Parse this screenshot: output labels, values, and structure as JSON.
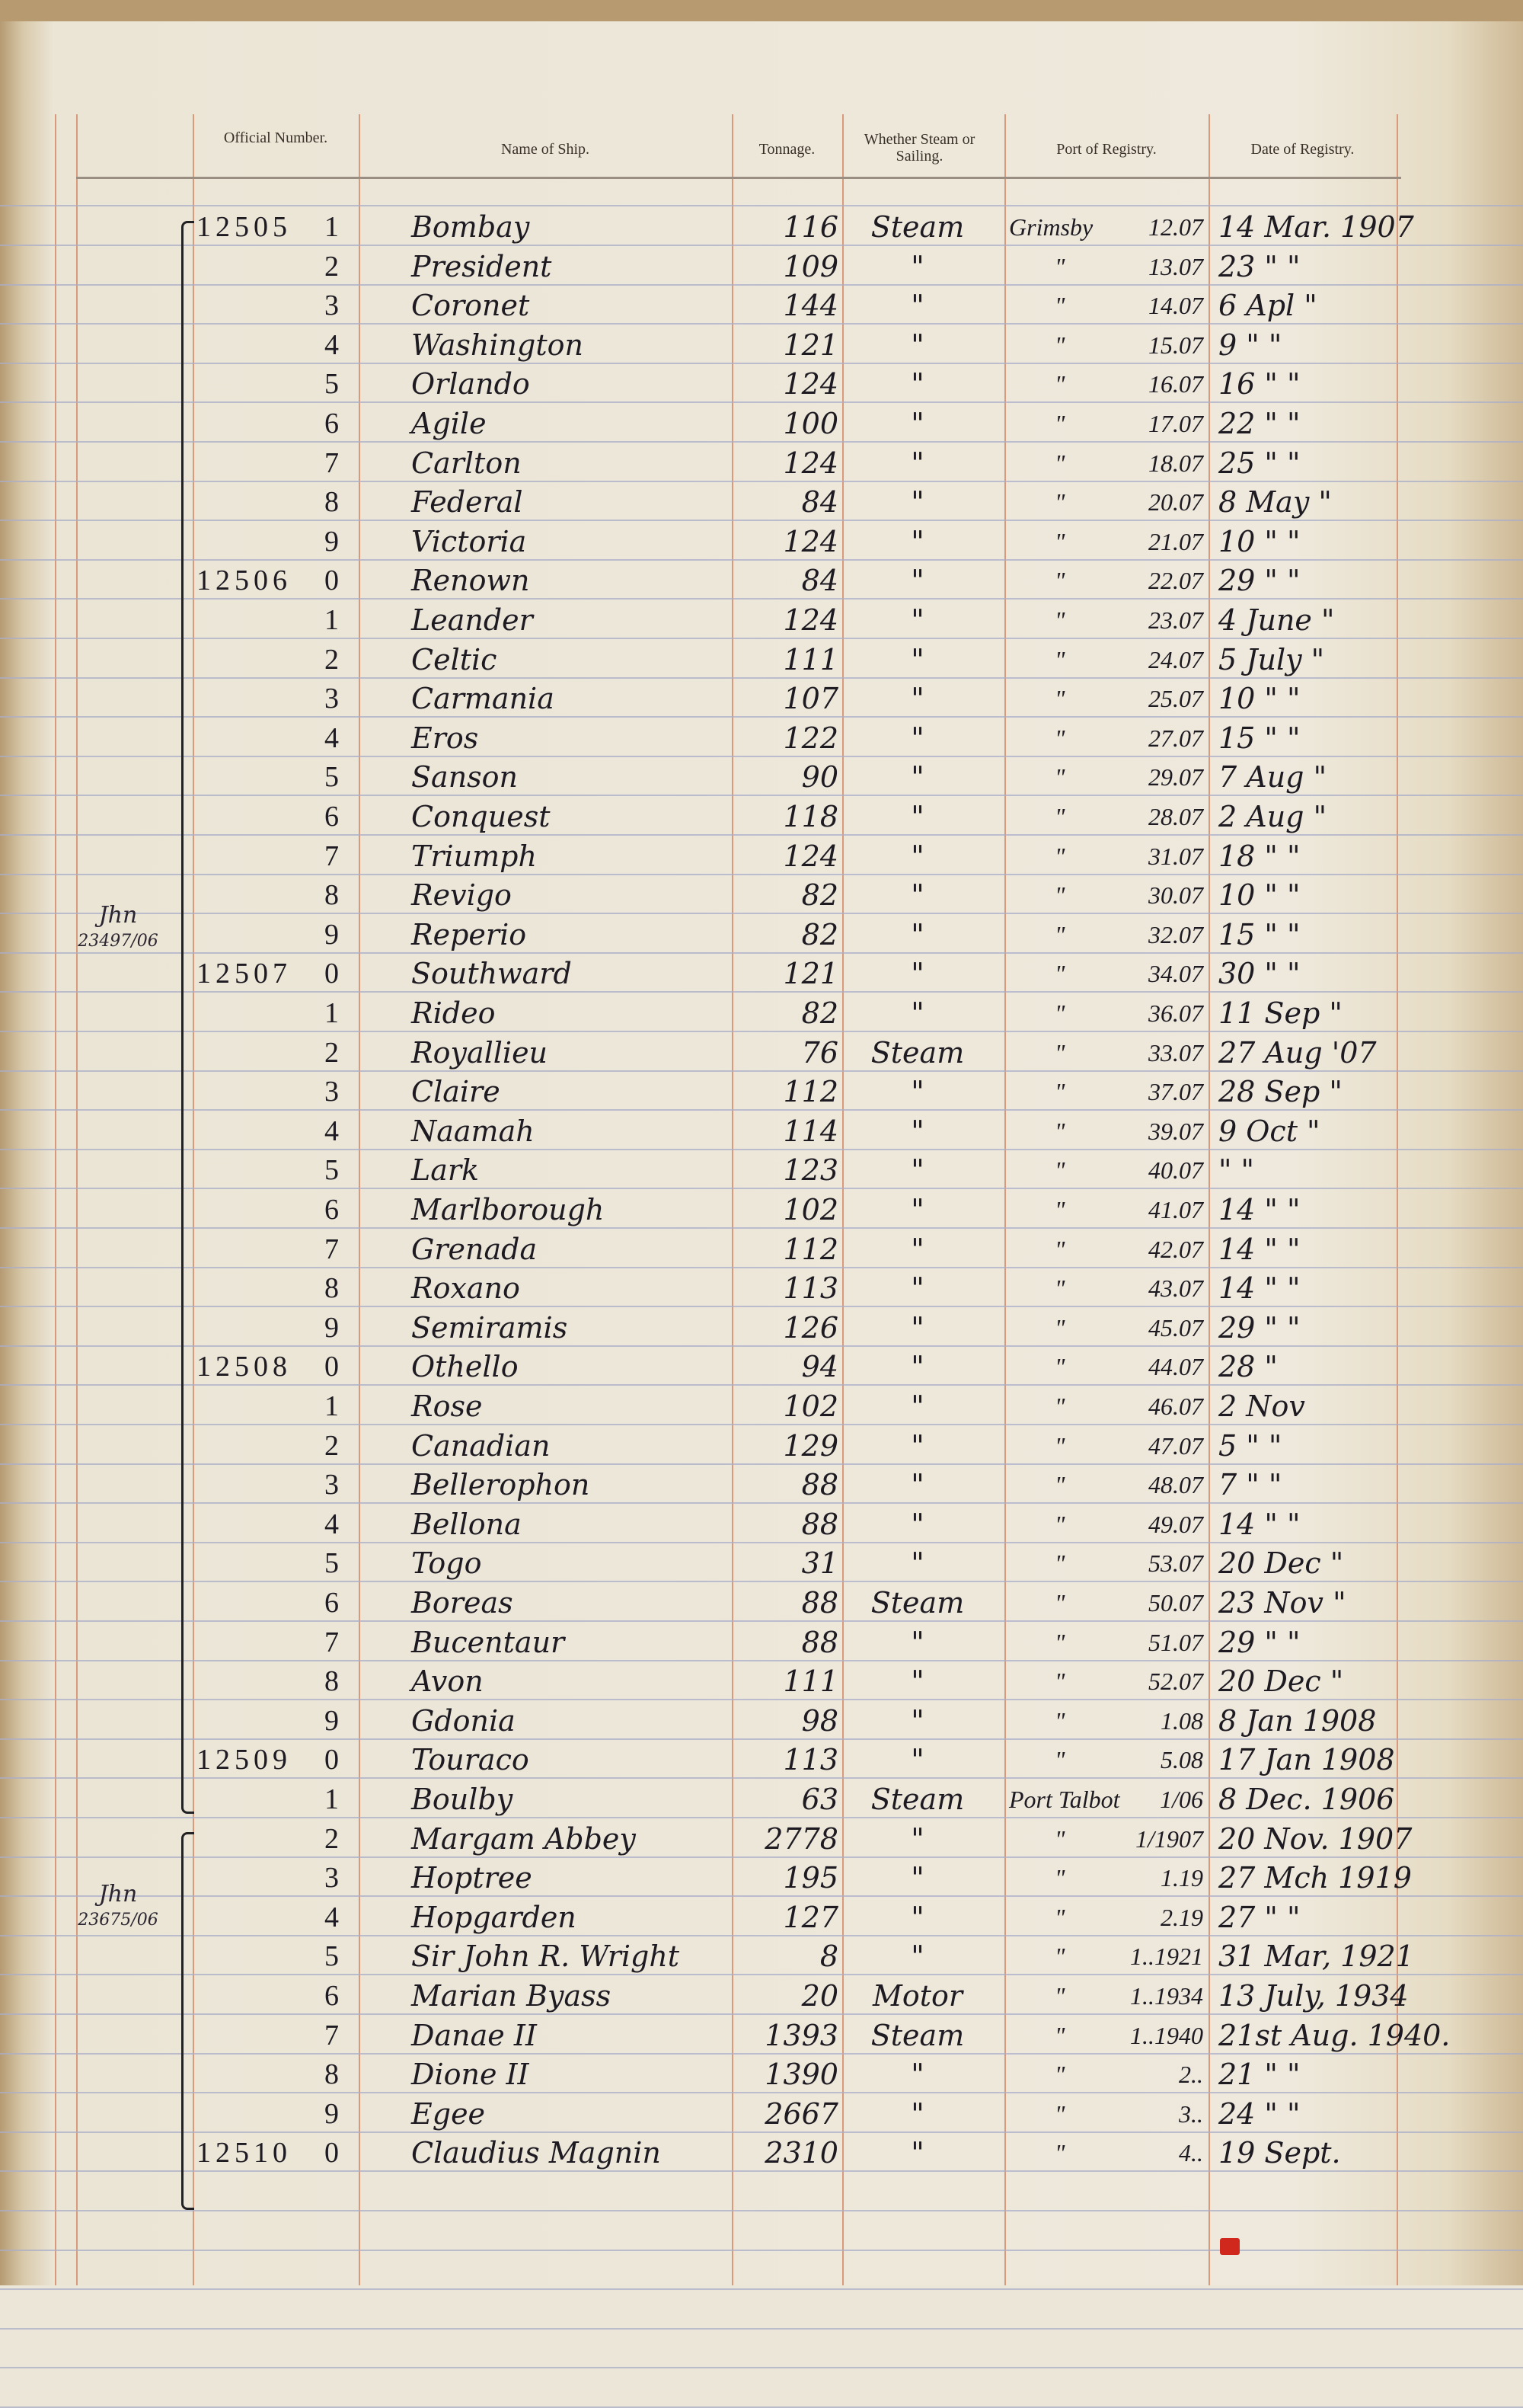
{
  "header": {
    "official_number": "Official Number.",
    "name": "Name of Ship.",
    "tonnage": "Tonnage.",
    "steam": "Whether Steam or Sailing.",
    "port": "Port of Registry.",
    "date": "Date of Registry."
  },
  "margin_notes": [
    {
      "label": "Jhn",
      "ref": "23497/06"
    },
    {
      "label": "Jhn",
      "ref": "23675/06"
    }
  ],
  "rows": [
    {
      "official": "12505",
      "digit": "1",
      "name": "Bombay",
      "tonnage": "116",
      "steam": "Steam",
      "port": "Grimsby",
      "port_no": "12.07",
      "date": "14 Mar. 1907"
    },
    {
      "official": "",
      "digit": "2",
      "name": "President",
      "tonnage": "109",
      "steam": "\"",
      "port": "\"",
      "port_no": "13.07",
      "date": "23 \" \""
    },
    {
      "official": "",
      "digit": "3",
      "name": "Coronet",
      "tonnage": "144",
      "steam": "\"",
      "port": "\"",
      "port_no": "14.07",
      "date": "6 Apl \""
    },
    {
      "official": "",
      "digit": "4",
      "name": "Washington",
      "tonnage": "121",
      "steam": "\"",
      "port": "\"",
      "port_no": "15.07",
      "date": "9 \" \""
    },
    {
      "official": "",
      "digit": "5",
      "name": "Orlando",
      "tonnage": "124",
      "steam": "\"",
      "port": "\"",
      "port_no": "16.07",
      "date": "16 \" \""
    },
    {
      "official": "",
      "digit": "6",
      "name": "Agile",
      "tonnage": "100",
      "steam": "\"",
      "port": "\"",
      "port_no": "17.07",
      "date": "22 \" \""
    },
    {
      "official": "",
      "digit": "7",
      "name": "Carlton",
      "tonnage": "124",
      "steam": "\"",
      "port": "\"",
      "port_no": "18.07",
      "date": "25 \" \""
    },
    {
      "official": "",
      "digit": "8",
      "name": "Federal",
      "tonnage": "84",
      "steam": "\"",
      "port": "\"",
      "port_no": "20.07",
      "date": "8 May \""
    },
    {
      "official": "",
      "digit": "9",
      "name": "Victoria",
      "tonnage": "124",
      "steam": "\"",
      "port": "\"",
      "port_no": "21.07",
      "date": "10 \" \""
    },
    {
      "official": "12506",
      "digit": "0",
      "name": "Renown",
      "tonnage": "84",
      "steam": "\"",
      "port": "\"",
      "port_no": "22.07",
      "date": "29 \" \""
    },
    {
      "official": "",
      "digit": "1",
      "name": "Leander",
      "tonnage": "124",
      "steam": "\"",
      "port": "\"",
      "port_no": "23.07",
      "date": "4 June \""
    },
    {
      "official": "",
      "digit": "2",
      "name": "Celtic",
      "tonnage": "111",
      "steam": "\"",
      "port": "\"",
      "port_no": "24.07",
      "date": "5 July \""
    },
    {
      "official": "",
      "digit": "3",
      "name": "Carmania",
      "tonnage": "107",
      "steam": "\"",
      "port": "\"",
      "port_no": "25.07",
      "date": "10 \" \""
    },
    {
      "official": "",
      "digit": "4",
      "name": "Eros",
      "tonnage": "122",
      "steam": "\"",
      "port": "\"",
      "port_no": "27.07",
      "date": "15 \" \""
    },
    {
      "official": "",
      "digit": "5",
      "name": "Sanson",
      "tonnage": "90",
      "steam": "\"",
      "port": "\"",
      "port_no": "29.07",
      "date": "7 Aug \""
    },
    {
      "official": "",
      "digit": "6",
      "name": "Conquest",
      "tonnage": "118",
      "steam": "\"",
      "port": "\"",
      "port_no": "28.07",
      "date": "2 Aug \""
    },
    {
      "official": "",
      "digit": "7",
      "name": "Triumph",
      "tonnage": "124",
      "steam": "\"",
      "port": "\"",
      "port_no": "31.07",
      "date": "18 \" \""
    },
    {
      "official": "",
      "digit": "8",
      "name": "Revigo",
      "tonnage": "82",
      "steam": "\"",
      "port": "\"",
      "port_no": "30.07",
      "date": "10 \" \""
    },
    {
      "official": "",
      "digit": "9",
      "name": "Reperio",
      "tonnage": "82",
      "steam": "\"",
      "port": "\"",
      "port_no": "32.07",
      "date": "15 \" \""
    },
    {
      "official": "12507",
      "digit": "0",
      "name": "Southward",
      "tonnage": "121",
      "steam": "\"",
      "port": "\"",
      "port_no": "34.07",
      "date": "30 \" \""
    },
    {
      "official": "",
      "digit": "1",
      "name": "Rideo",
      "tonnage": "82",
      "steam": "\"",
      "port": "\"",
      "port_no": "36.07",
      "date": "11 Sep \""
    },
    {
      "official": "",
      "digit": "2",
      "name": "Royallieu",
      "tonnage": "76",
      "steam": "Steam",
      "port": "\"",
      "port_no": "33.07",
      "date": "27 Aug '07"
    },
    {
      "official": "",
      "digit": "3",
      "name": "Claire",
      "tonnage": "112",
      "steam": "\"",
      "port": "\"",
      "port_no": "37.07",
      "date": "28 Sep \""
    },
    {
      "official": "",
      "digit": "4",
      "name": "Naamah",
      "tonnage": "114",
      "steam": "\"",
      "port": "\"",
      "port_no": "39.07",
      "date": "9 Oct \""
    },
    {
      "official": "",
      "digit": "5",
      "name": "Lark",
      "tonnage": "123",
      "steam": "\"",
      "port": "\"",
      "port_no": "40.07",
      "date": "\" \""
    },
    {
      "official": "",
      "digit": "6",
      "name": "Marlborough",
      "tonnage": "102",
      "steam": "\"",
      "port": "\"",
      "port_no": "41.07",
      "date": "14 \" \""
    },
    {
      "official": "",
      "digit": "7",
      "name": "Grenada",
      "tonnage": "112",
      "steam": "\"",
      "port": "\"",
      "port_no": "42.07",
      "date": "14 \" \""
    },
    {
      "official": "",
      "digit": "8",
      "name": "Roxano",
      "tonnage": "113",
      "steam": "\"",
      "port": "\"",
      "port_no": "43.07",
      "date": "14 \" \""
    },
    {
      "official": "",
      "digit": "9",
      "name": "Semiramis",
      "tonnage": "126",
      "steam": "\"",
      "port": "\"",
      "port_no": "45.07",
      "date": "29 \" \""
    },
    {
      "official": "12508",
      "digit": "0",
      "name": "Othello",
      "tonnage": "94",
      "steam": "\"",
      "port": "\"",
      "port_no": "44.07",
      "date": "28 \""
    },
    {
      "official": "",
      "digit": "1",
      "name": "Rose",
      "tonnage": "102",
      "steam": "\"",
      "port": "\"",
      "port_no": "46.07",
      "date": "2 Nov"
    },
    {
      "official": "",
      "digit": "2",
      "name": "Canadian",
      "tonnage": "129",
      "steam": "\"",
      "port": "\"",
      "port_no": "47.07",
      "date": "5 \" \""
    },
    {
      "official": "",
      "digit": "3",
      "name": "Bellerophon",
      "tonnage": "88",
      "steam": "\"",
      "port": "\"",
      "port_no": "48.07",
      "date": "7 \" \""
    },
    {
      "official": "",
      "digit": "4",
      "name": "Bellona",
      "tonnage": "88",
      "steam": "\"",
      "port": "\"",
      "port_no": "49.07",
      "date": "14 \" \""
    },
    {
      "official": "",
      "digit": "5",
      "name": "Togo",
      "tonnage": "31",
      "steam": "\"",
      "port": "\"",
      "port_no": "53.07",
      "date": "20 Dec \""
    },
    {
      "official": "",
      "digit": "6",
      "name": "Boreas",
      "tonnage": "88",
      "steam": "Steam",
      "port": "\"",
      "port_no": "50.07",
      "date": "23 Nov \""
    },
    {
      "official": "",
      "digit": "7",
      "name": "Bucentaur",
      "tonnage": "88",
      "steam": "\"",
      "port": "\"",
      "port_no": "51.07",
      "date": "29 \" \""
    },
    {
      "official": "",
      "digit": "8",
      "name": "Avon",
      "tonnage": "111",
      "steam": "\"",
      "port": "\"",
      "port_no": "52.07",
      "date": "20 Dec \""
    },
    {
      "official": "",
      "digit": "9",
      "name": "Gdonia",
      "tonnage": "98",
      "steam": "\"",
      "port": "\"",
      "port_no": "1.08",
      "date": "8 Jan 1908"
    },
    {
      "official": "12509",
      "digit": "0",
      "name": "Touraco",
      "tonnage": "113",
      "steam": "\"",
      "port": "\"",
      "port_no": "5.08",
      "date": "17 Jan 1908"
    },
    {
      "official": "",
      "digit": "1",
      "name": "Boulby",
      "tonnage": "63",
      "steam": "Steam",
      "port": "Port Talbot",
      "port_no": "1/06",
      "date": "8 Dec. 1906"
    },
    {
      "official": "",
      "digit": "2",
      "name": "Margam Abbey",
      "tonnage": "2778",
      "steam": "\"",
      "port": "\"",
      "port_no": "1/1907",
      "date": "20 Nov. 1907"
    },
    {
      "official": "",
      "digit": "3",
      "name": "Hoptree",
      "tonnage": "195",
      "steam": "\"",
      "port": "\"",
      "port_no": "1.19",
      "date": "27 Mch 1919"
    },
    {
      "official": "",
      "digit": "4",
      "name": "Hopgarden",
      "tonnage": "127",
      "steam": "\"",
      "port": "\"",
      "port_no": "2.19",
      "date": "27 \" \""
    },
    {
      "official": "",
      "digit": "5",
      "name": "Sir John R. Wright",
      "tonnage": "8",
      "steam": "\"",
      "port": "\"",
      "port_no": "1..1921",
      "date": "31 Mar, 1921"
    },
    {
      "official": "",
      "digit": "6",
      "name": "Marian Byass",
      "tonnage": "20",
      "steam": "Motor",
      "port": "\"",
      "port_no": "1..1934",
      "date": "13 July, 1934"
    },
    {
      "official": "",
      "digit": "7",
      "name": "Danae II",
      "tonnage": "1393",
      "steam": "Steam",
      "port": "\"",
      "port_no": "1..1940",
      "date": "21st Aug. 1940."
    },
    {
      "official": "",
      "digit": "8",
      "name": "Dione II",
      "tonnage": "1390",
      "steam": "\"",
      "port": "\"",
      "port_no": "2..",
      "date": "21 \" \""
    },
    {
      "official": "",
      "digit": "9",
      "name": "Egee",
      "tonnage": "2667",
      "steam": "\"",
      "port": "\"",
      "port_no": "3..",
      "date": "24 \" \""
    },
    {
      "official": "12510",
      "digit": "0",
      "name": "Claudius Magnin",
      "tonnage": "2310",
      "steam": "\"",
      "port": "\"",
      "port_no": "4..",
      "date": "19 Sept."
    }
  ]
}
